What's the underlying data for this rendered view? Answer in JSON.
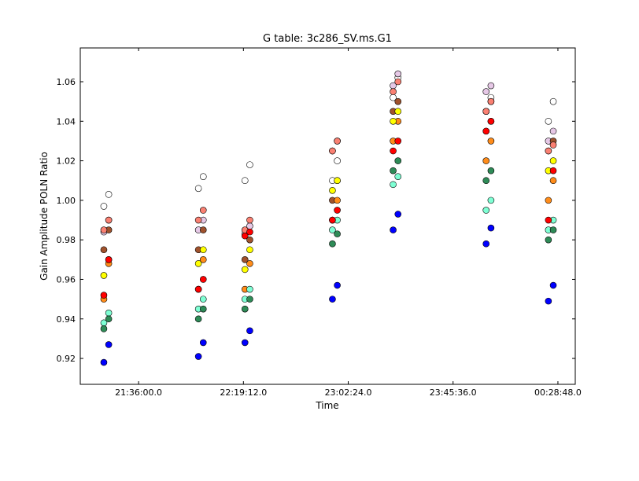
{
  "chart_data": {
    "type": "scatter",
    "title": "G table: 3c286_SV.ms.G1",
    "x_label": "Time",
    "y_label": "Gain Amplitude POLN Ratio",
    "x": [
      76901,
      77021,
      79239,
      79359,
      80390,
      80510,
      82553,
      82673,
      84054,
      84174,
      86353,
      86473,
      87893,
      88013
    ],
    "xlim": [
      76318,
      88557
    ],
    "xticks": [
      {
        "value": 77760,
        "label": "21:36:00.0"
      },
      {
        "value": 80352,
        "label": "22:19:12.0"
      },
      {
        "value": 82944,
        "label": "23:02:24.0"
      },
      {
        "value": 85536,
        "label": "23:45:36.0"
      },
      {
        "value": 88128,
        "label": "00:28:48.0"
      }
    ],
    "ylim": [
      0.9069,
      1.0771
    ],
    "yticks": [
      0.92,
      0.94,
      0.96,
      0.98,
      {
        "value": 1.0,
        "label": "1.00"
      },
      1.02,
      1.04,
      1.06
    ],
    "series": [
      {
        "color": "#ffffff",
        "values": [
          0.997,
          1.003,
          1.006,
          1.012,
          1.01,
          1.018,
          1.01,
          1.02,
          1.052,
          1.062,
          1.045,
          1.052,
          1.04,
          1.05
        ]
      },
      {
        "color": "#e6c8e6",
        "values": [
          0.984,
          0.99,
          0.985,
          0.99,
          0.983,
          0.987,
          1.025,
          1.03,
          1.058,
          1.064,
          1.055,
          1.058,
          1.03,
          1.035
        ]
      },
      {
        "color": "#a0522d",
        "values": [
          0.975,
          0.985,
          0.975,
          0.985,
          0.97,
          0.98,
          1.0,
          1.01,
          1.045,
          1.05,
          1.045,
          1.05,
          1.025,
          1.03
        ]
      },
      {
        "color": "#fa8072",
        "values": [
          0.985,
          0.99,
          0.99,
          0.995,
          0.985,
          0.99,
          1.025,
          1.03,
          1.055,
          1.06,
          1.045,
          1.05,
          1.025,
          1.028
        ]
      },
      {
        "color": "#ff8c1a",
        "values": [
          0.95,
          0.968,
          0.955,
          0.97,
          0.955,
          0.968,
          0.99,
          1.0,
          1.03,
          1.04,
          1.02,
          1.03,
          1.0,
          1.01
        ]
      },
      {
        "color": "#ffff00",
        "values": [
          0.962,
          0.97,
          0.968,
          0.975,
          0.965,
          0.975,
          1.005,
          1.01,
          1.04,
          1.045,
          1.035,
          1.04,
          1.015,
          1.02
        ]
      },
      {
        "color": "#7fffd4",
        "values": [
          0.938,
          0.943,
          0.945,
          0.95,
          0.95,
          0.955,
          0.985,
          0.99,
          1.008,
          1.012,
          0.995,
          1.0,
          0.985,
          0.99
        ]
      },
      {
        "color": "#2e8b57",
        "values": [
          0.935,
          0.94,
          0.94,
          0.945,
          0.945,
          0.95,
          0.978,
          0.983,
          1.015,
          1.02,
          1.01,
          1.015,
          0.98,
          0.985
        ]
      },
      {
        "color": "#ff0000",
        "values": [
          0.952,
          0.97,
          0.955,
          0.96,
          0.982,
          0.984,
          0.99,
          0.995,
          1.025,
          1.03,
          1.035,
          1.04,
          0.99,
          1.015
        ]
      },
      {
        "color": "#0000ff",
        "values": [
          0.918,
          0.927,
          0.921,
          0.928,
          0.928,
          0.934,
          0.95,
          0.957,
          0.985,
          0.993,
          0.978,
          0.986,
          0.949,
          0.957
        ]
      }
    ]
  }
}
